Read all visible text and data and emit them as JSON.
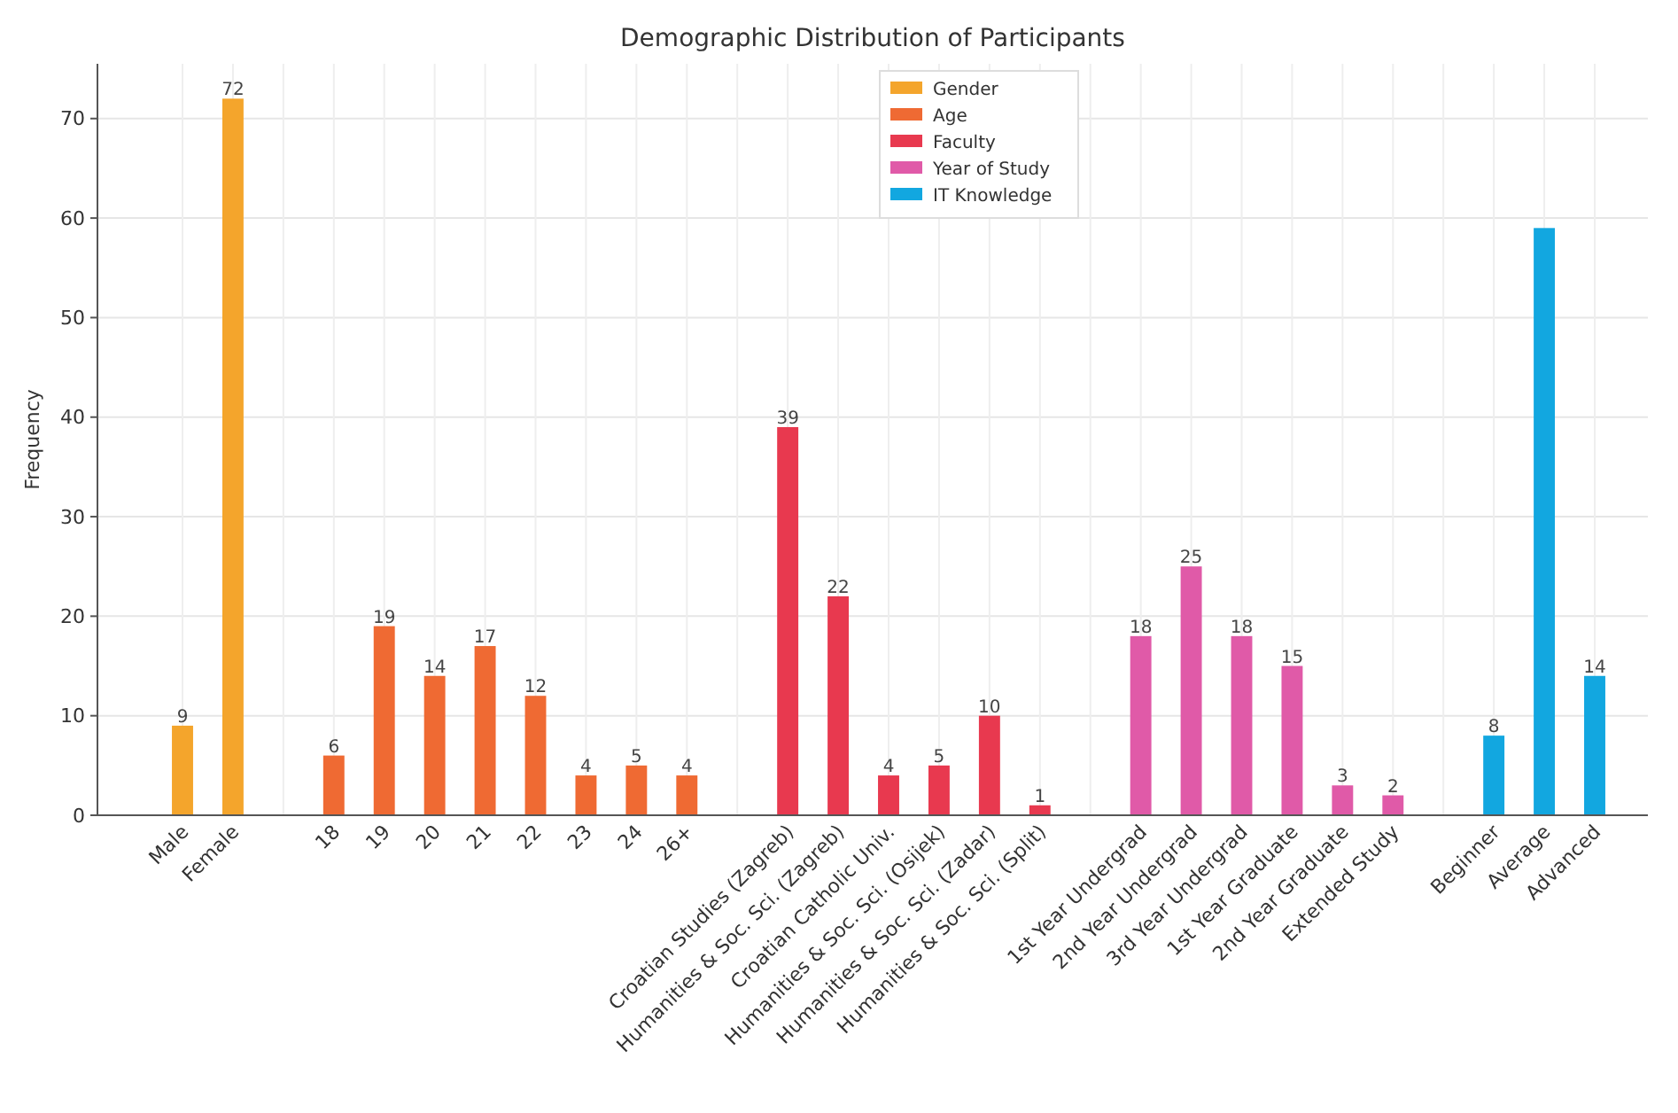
{
  "chart_data": {
    "type": "bar",
    "title": "Demographic Distribution of Participants",
    "ylabel": "Frequency",
    "categories": [
      "Male",
      "Female",
      null,
      "18",
      "19",
      "20",
      "21",
      "22",
      "23",
      "24",
      "26+",
      null,
      "Croatian Studies (Zagreb)",
      "Humanities & Soc. Sci. (Zagreb)",
      "Croatian Catholic Univ.",
      "Humanities & Soc. Sci. (Osijek)",
      "Humanities & Soc. Sci. (Zadar)",
      "Humanities & Soc. Sci. (Split)",
      null,
      "1st Year Undergrad",
      "2nd Year Undergrad",
      "3rd Year Undergrad",
      "1st Year Graduate",
      "2nd Year Graduate",
      "Extended Study",
      null,
      "Beginner",
      "Average",
      "Advanced"
    ],
    "series": [
      {
        "name": "Gender",
        "color": "#f4a52c",
        "values": [
          9,
          72,
          null,
          null,
          null,
          null,
          null,
          null,
          null,
          null,
          null,
          null,
          null,
          null,
          null,
          null,
          null,
          null,
          null,
          null,
          null,
          null,
          null,
          null,
          null,
          null,
          null,
          null,
          null
        ],
        "value_labels": [
          "9",
          "72",
          null,
          null,
          null,
          null,
          null,
          null,
          null,
          null,
          null,
          null,
          null,
          null,
          null,
          null,
          null,
          null,
          null,
          null,
          null,
          null,
          null,
          null,
          null,
          null,
          null,
          null,
          null
        ]
      },
      {
        "name": "Age",
        "color": "#ef6a33",
        "values": [
          null,
          null,
          null,
          6,
          19,
          14,
          17,
          12,
          4,
          5,
          4,
          null,
          null,
          null,
          null,
          null,
          null,
          null,
          null,
          null,
          null,
          null,
          null,
          null,
          null,
          null,
          null,
          null,
          null
        ],
        "value_labels": [
          null,
          null,
          null,
          "6",
          "19",
          "14",
          "17",
          "12",
          "4",
          "5",
          "4",
          null,
          null,
          null,
          null,
          null,
          null,
          null,
          null,
          null,
          null,
          null,
          null,
          null,
          null,
          null,
          null,
          null,
          null
        ]
      },
      {
        "name": "Faculty",
        "color": "#e8394f",
        "values": [
          null,
          null,
          null,
          null,
          null,
          null,
          null,
          null,
          null,
          null,
          null,
          null,
          39,
          22,
          4,
          5,
          10,
          1,
          null,
          null,
          null,
          null,
          null,
          null,
          null,
          null,
          null,
          null,
          null
        ],
        "value_labels": [
          null,
          null,
          null,
          null,
          null,
          null,
          null,
          null,
          null,
          null,
          null,
          null,
          "39",
          "22",
          "4",
          "5",
          "10",
          "1",
          null,
          null,
          null,
          null,
          null,
          null,
          null,
          null,
          null,
          null,
          null
        ]
      },
      {
        "name": "Year of Study",
        "color": "#e05aa8",
        "values": [
          null,
          null,
          null,
          null,
          null,
          null,
          null,
          null,
          null,
          null,
          null,
          null,
          null,
          null,
          null,
          null,
          null,
          null,
          null,
          18,
          25,
          18,
          15,
          3,
          2,
          null,
          null,
          null,
          null
        ],
        "value_labels": [
          null,
          null,
          null,
          null,
          null,
          null,
          null,
          null,
          null,
          null,
          null,
          null,
          null,
          null,
          null,
          null,
          null,
          null,
          null,
          "18",
          "25",
          "18",
          "15",
          "3",
          "2",
          null,
          null,
          null,
          null
        ]
      },
      {
        "name": "IT Knowledge",
        "color": "#12a7e0",
        "values": [
          null,
          null,
          null,
          null,
          null,
          null,
          null,
          null,
          null,
          null,
          null,
          null,
          null,
          null,
          null,
          null,
          null,
          null,
          null,
          null,
          null,
          null,
          null,
          null,
          null,
          null,
          8,
          59,
          14
        ],
        "value_labels": [
          null,
          null,
          null,
          null,
          null,
          null,
          null,
          null,
          null,
          null,
          null,
          null,
          null,
          null,
          null,
          null,
          null,
          null,
          null,
          null,
          null,
          null,
          null,
          null,
          null,
          null,
          "8",
          null,
          "14"
        ]
      }
    ],
    "ylim": [
      0,
      75.5
    ],
    "yticks": [
      0,
      10,
      20,
      30,
      40,
      50,
      60,
      70
    ],
    "grid": true,
    "legend": "top"
  }
}
